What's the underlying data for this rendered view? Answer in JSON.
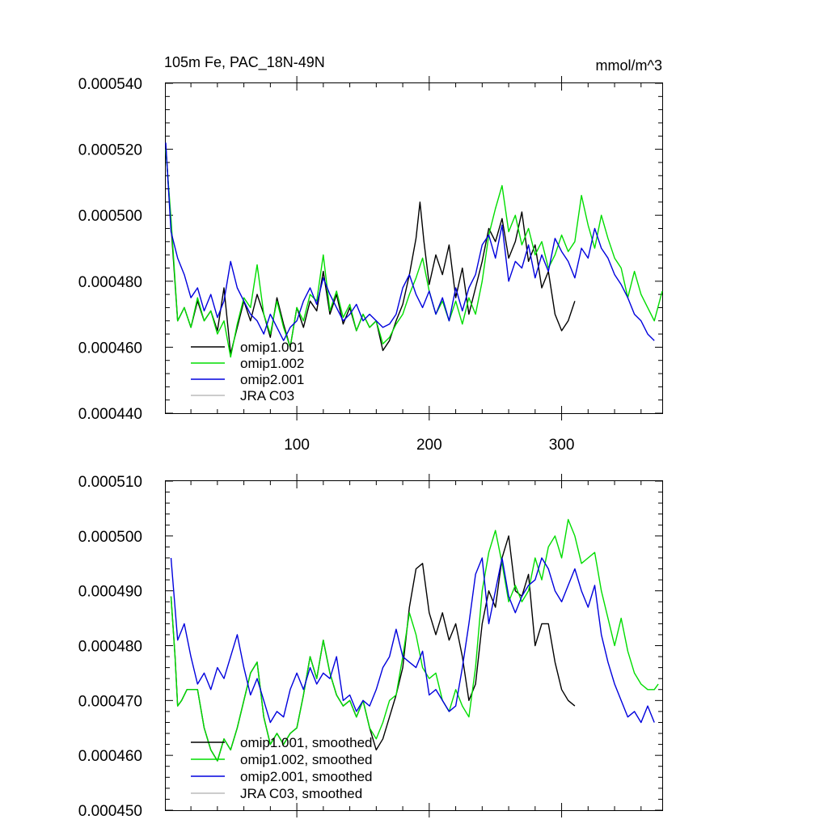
{
  "chart_data": [
    {
      "type": "line",
      "title": "105m Fe, PAC_18N-49N",
      "units": "mmol/m^3",
      "xlim": [
        1,
        376
      ],
      "ylim": [
        0.00044,
        0.00054
      ],
      "xticks": [
        100,
        200,
        300
      ],
      "xtick_labels": [
        "100",
        "200",
        "300"
      ],
      "yticks": [
        0.00044,
        0.00046,
        0.00048,
        0.0005,
        0.00052,
        0.00054
      ],
      "ytick_labels": [
        "0.000440",
        "0.000460",
        "0.000480",
        "0.000500",
        "0.000520",
        "0.000540"
      ],
      "legend_position": "bottom-left",
      "series": [
        {
          "name": "omip1.001",
          "color": "#000000",
          "x": [
            1,
            5,
            10,
            15,
            20,
            25,
            30,
            35,
            40,
            45,
            50,
            55,
            60,
            65,
            70,
            75,
            80,
            85,
            90,
            95,
            100,
            105,
            110,
            115,
            120,
            125,
            130,
            135,
            140,
            145,
            150,
            155,
            160,
            165,
            170,
            175,
            180,
            185,
            190,
            193,
            196,
            200,
            205,
            210,
            215,
            220,
            225,
            230,
            235,
            240,
            245,
            250,
            255,
            260,
            265,
            270,
            275,
            280,
            285,
            290,
            295,
            300,
            305,
            310
          ],
          "values": [
            0.000521,
            0.000497,
            0.000468,
            0.000472,
            0.000466,
            0.000474,
            0.000468,
            0.000471,
            0.000465,
            0.000478,
            0.000458,
            0.000466,
            0.000474,
            0.000468,
            0.000476,
            0.00047,
            0.000463,
            0.000475,
            0.000467,
            0.00046,
            0.000472,
            0.000466,
            0.000474,
            0.000471,
            0.000483,
            0.00047,
            0.000476,
            0.000467,
            0.000472,
            0.000465,
            0.00047,
            0.000466,
            0.000468,
            0.000459,
            0.000462,
            0.000468,
            0.000473,
            0.000482,
            0.000493,
            0.000504,
            0.000492,
            0.000479,
            0.000488,
            0.000482,
            0.000491,
            0.000475,
            0.000484,
            0.00047,
            0.000478,
            0.000486,
            0.000496,
            0.000492,
            0.000499,
            0.000487,
            0.000492,
            0.000501,
            0.000486,
            0.000491,
            0.000478,
            0.000483,
            0.00047,
            0.000465,
            0.000468,
            0.000474
          ]
        },
        {
          "name": "omip1.002",
          "color": "#00dd00",
          "x": [
            1,
            5,
            10,
            15,
            20,
            25,
            30,
            35,
            40,
            45,
            50,
            55,
            60,
            65,
            70,
            75,
            80,
            85,
            90,
            95,
            100,
            105,
            110,
            115,
            120,
            125,
            130,
            135,
            140,
            145,
            150,
            155,
            160,
            165,
            170,
            175,
            180,
            185,
            190,
            195,
            200,
            205,
            210,
            215,
            220,
            225,
            230,
            235,
            240,
            245,
            250,
            255,
            260,
            265,
            270,
            275,
            280,
            285,
            290,
            295,
            300,
            305,
            310,
            315,
            320,
            325,
            330,
            335,
            340,
            345,
            350,
            355,
            360,
            365,
            370,
            376
          ],
          "values": [
            0.00052,
            0.000499,
            0.000468,
            0.000472,
            0.000466,
            0.000475,
            0.000468,
            0.000471,
            0.000464,
            0.000468,
            0.000457,
            0.000467,
            0.000475,
            0.000472,
            0.000485,
            0.00047,
            0.000464,
            0.000474,
            0.000466,
            0.00046,
            0.000472,
            0.000468,
            0.000476,
            0.000474,
            0.000488,
            0.000471,
            0.000477,
            0.000469,
            0.000473,
            0.000465,
            0.00047,
            0.000466,
            0.000468,
            0.000461,
            0.000463,
            0.000467,
            0.00047,
            0.000476,
            0.000481,
            0.000487,
            0.000477,
            0.00047,
            0.000474,
            0.000468,
            0.000474,
            0.000467,
            0.000475,
            0.00047,
            0.00048,
            0.000494,
            0.000502,
            0.000509,
            0.000495,
            0.0005,
            0.000491,
            0.000496,
            0.000488,
            0.000492,
            0.000484,
            0.000488,
            0.000494,
            0.000489,
            0.000492,
            0.000506,
            0.000497,
            0.00049,
            0.0005,
            0.000493,
            0.000487,
            0.000484,
            0.000475,
            0.000483,
            0.000476,
            0.000472,
            0.000468,
            0.000477
          ]
        },
        {
          "name": "omip2.001",
          "color": "#0000dd",
          "x": [
            1,
            5,
            10,
            15,
            20,
            25,
            30,
            35,
            40,
            45,
            50,
            55,
            60,
            65,
            70,
            75,
            80,
            85,
            90,
            95,
            100,
            105,
            110,
            115,
            120,
            125,
            130,
            135,
            140,
            145,
            150,
            155,
            160,
            165,
            170,
            175,
            180,
            185,
            190,
            195,
            200,
            205,
            210,
            215,
            220,
            225,
            230,
            235,
            240,
            245,
            250,
            255,
            260,
            265,
            270,
            275,
            280,
            285,
            290,
            295,
            300,
            305,
            310,
            315,
            320,
            325,
            330,
            335,
            340,
            345,
            350,
            355,
            360,
            365,
            370
          ],
          "values": [
            0.000522,
            0.000495,
            0.000487,
            0.000482,
            0.000475,
            0.000478,
            0.000471,
            0.000476,
            0.000469,
            0.000474,
            0.000486,
            0.000478,
            0.000474,
            0.00047,
            0.000468,
            0.000464,
            0.00047,
            0.000466,
            0.000462,
            0.000466,
            0.000468,
            0.000474,
            0.000478,
            0.000473,
            0.000481,
            0.000476,
            0.000472,
            0.000468,
            0.00047,
            0.000473,
            0.000468,
            0.00047,
            0.000468,
            0.000466,
            0.000467,
            0.00047,
            0.000478,
            0.000482,
            0.000476,
            0.000472,
            0.000477,
            0.00047,
            0.000475,
            0.000468,
            0.000478,
            0.000471,
            0.000478,
            0.000482,
            0.000491,
            0.000494,
            0.000487,
            0.000497,
            0.00048,
            0.000486,
            0.000484,
            0.000491,
            0.000481,
            0.000488,
            0.000483,
            0.000493,
            0.000489,
            0.000486,
            0.000481,
            0.00049,
            0.000487,
            0.000496,
            0.00049,
            0.000487,
            0.000482,
            0.000479,
            0.000475,
            0.00047,
            0.000468,
            0.000464,
            0.000462
          ]
        },
        {
          "name": "JRA C03",
          "color": "#bbbbbb",
          "x": [],
          "values": []
        }
      ]
    },
    {
      "type": "line",
      "title": "",
      "xlim": [
        1,
        376
      ],
      "ylim": [
        0.00045,
        0.00051
      ],
      "xticks": [
        100,
        200,
        300
      ],
      "xtick_labels": [
        "",
        "",
        ""
      ],
      "yticks": [
        0.00045,
        0.00046,
        0.00047,
        0.00048,
        0.00049,
        0.0005,
        0.00051
      ],
      "ytick_labels": [
        "0.000450",
        "0.000460",
        "0.000470",
        "0.000480",
        "0.000490",
        "0.000500",
        "0.000510"
      ],
      "legend_position": "bottom-left",
      "series": [
        {
          "name": "omip1.001, smoothed",
          "color": "#000000",
          "x": [
            5,
            8,
            10,
            13,
            17,
            20,
            25,
            30,
            35,
            40,
            45,
            50,
            55,
            60,
            65,
            70,
            75,
            80,
            85,
            90,
            95,
            100,
            105,
            110,
            115,
            120,
            125,
            130,
            135,
            140,
            145,
            150,
            155,
            160,
            165,
            170,
            175,
            180,
            185,
            190,
            195,
            200,
            205,
            210,
            215,
            220,
            225,
            230,
            235,
            240,
            245,
            250,
            255,
            260,
            265,
            270,
            275,
            280,
            285,
            290,
            295,
            300,
            305,
            310
          ],
          "values": [
            0.000489,
            0.000478,
            0.000469,
            0.00047,
            0.000472,
            0.000472,
            0.000472,
            0.000465,
            0.000461,
            0.000459,
            0.000463,
            0.000461,
            0.000465,
            0.00047,
            0.000475,
            0.000477,
            0.000467,
            0.000462,
            0.000464,
            0.000462,
            0.000464,
            0.000465,
            0.000471,
            0.000478,
            0.000474,
            0.000481,
            0.000475,
            0.000471,
            0.000469,
            0.00047,
            0.000467,
            0.00047,
            0.000465,
            0.000461,
            0.000463,
            0.000467,
            0.000471,
            0.000476,
            0.000487,
            0.000494,
            0.000495,
            0.000486,
            0.000482,
            0.000486,
            0.000481,
            0.000484,
            0.000478,
            0.00047,
            0.000473,
            0.000484,
            0.00049,
            0.000487,
            0.000496,
            0.0005,
            0.00049,
            0.000489,
            0.000493,
            0.00048,
            0.000484,
            0.000484,
            0.000477,
            0.000472,
            0.00047,
            0.000469
          ]
        },
        {
          "name": "omip1.002, smoothed",
          "color": "#00dd00",
          "x": [
            5,
            8,
            10,
            13,
            17,
            20,
            25,
            30,
            35,
            40,
            45,
            50,
            55,
            60,
            65,
            70,
            75,
            80,
            85,
            90,
            95,
            100,
            105,
            110,
            115,
            120,
            125,
            130,
            135,
            140,
            145,
            150,
            155,
            160,
            165,
            170,
            175,
            180,
            185,
            190,
            195,
            200,
            205,
            210,
            215,
            220,
            225,
            230,
            235,
            240,
            245,
            250,
            255,
            260,
            265,
            270,
            275,
            280,
            285,
            290,
            295,
            300,
            305,
            310,
            315,
            320,
            325,
            330,
            335,
            340,
            345,
            350,
            355,
            360,
            365,
            370,
            373
          ],
          "values": [
            0.000489,
            0.000478,
            0.000469,
            0.00047,
            0.000472,
            0.000472,
            0.000472,
            0.000465,
            0.000461,
            0.000459,
            0.000463,
            0.000461,
            0.000465,
            0.00047,
            0.000475,
            0.000477,
            0.000467,
            0.000462,
            0.000464,
            0.000462,
            0.000464,
            0.000465,
            0.000471,
            0.000478,
            0.000474,
            0.000481,
            0.000475,
            0.000471,
            0.000469,
            0.00047,
            0.000467,
            0.00047,
            0.000465,
            0.000463,
            0.000466,
            0.00047,
            0.000471,
            0.000478,
            0.000486,
            0.000482,
            0.000476,
            0.000474,
            0.000475,
            0.00047,
            0.000468,
            0.000472,
            0.000469,
            0.000467,
            0.000476,
            0.00049,
            0.000497,
            0.000501,
            0.000495,
            0.000488,
            0.000491,
            0.000488,
            0.00049,
            0.000496,
            0.000492,
            0.000498,
            0.0005,
            0.000496,
            0.000503,
            0.0005,
            0.000495,
            0.000496,
            0.000497,
            0.00049,
            0.000485,
            0.00048,
            0.000485,
            0.000479,
            0.000475,
            0.000473,
            0.000472,
            0.000472,
            0.000473
          ]
        },
        {
          "name": "omip2.001, smoothed",
          "color": "#0000dd",
          "x": [
            5,
            10,
            15,
            20,
            25,
            30,
            35,
            40,
            45,
            50,
            55,
            60,
            65,
            70,
            75,
            80,
            85,
            90,
            95,
            100,
            105,
            110,
            115,
            120,
            125,
            130,
            135,
            140,
            145,
            150,
            155,
            160,
            165,
            170,
            175,
            180,
            185,
            190,
            195,
            200,
            205,
            210,
            215,
            220,
            225,
            230,
            235,
            240,
            245,
            250,
            255,
            260,
            265,
            270,
            275,
            280,
            285,
            290,
            295,
            300,
            305,
            310,
            315,
            320,
            325,
            330,
            335,
            340,
            345,
            350,
            355,
            360,
            365,
            370
          ],
          "values": [
            0.000496,
            0.000481,
            0.000484,
            0.000478,
            0.000473,
            0.000475,
            0.000472,
            0.000476,
            0.000474,
            0.000478,
            0.000482,
            0.000476,
            0.000471,
            0.000474,
            0.00047,
            0.000466,
            0.000468,
            0.000467,
            0.000472,
            0.000475,
            0.000472,
            0.000476,
            0.000473,
            0.000475,
            0.000474,
            0.000478,
            0.00047,
            0.000471,
            0.000468,
            0.00047,
            0.000469,
            0.000472,
            0.000476,
            0.000478,
            0.000483,
            0.000478,
            0.000477,
            0.000476,
            0.000479,
            0.000471,
            0.000472,
            0.00047,
            0.000468,
            0.000469,
            0.000476,
            0.000484,
            0.000493,
            0.000496,
            0.000484,
            0.00049,
            0.000496,
            0.000489,
            0.000486,
            0.000489,
            0.000491,
            0.000492,
            0.000496,
            0.000494,
            0.00049,
            0.000488,
            0.000491,
            0.000494,
            0.00049,
            0.000487,
            0.000491,
            0.000482,
            0.000477,
            0.000473,
            0.00047,
            0.000467,
            0.000468,
            0.000466,
            0.000469,
            0.000466
          ]
        },
        {
          "name": "JRA C03, smoothed",
          "color": "#bbbbbb",
          "x": [],
          "values": []
        }
      ]
    }
  ]
}
